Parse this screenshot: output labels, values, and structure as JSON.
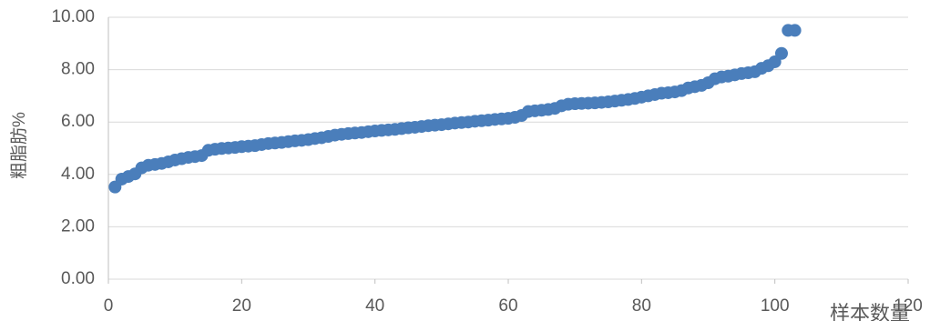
{
  "chart_data": {
    "type": "scatter",
    "y_label": "粗脂肪%",
    "x_label": "样本数量",
    "color": "#4a7ebb",
    "grid": true,
    "x": [
      1,
      2,
      3,
      4,
      5,
      6,
      7,
      8,
      9,
      10,
      11,
      12,
      13,
      14,
      15,
      16,
      17,
      18,
      19,
      20,
      21,
      22,
      23,
      24,
      25,
      26,
      27,
      28,
      29,
      30,
      31,
      32,
      33,
      34,
      35,
      36,
      37,
      38,
      39,
      40,
      41,
      42,
      43,
      44,
      45,
      46,
      47,
      48,
      49,
      50,
      51,
      52,
      53,
      54,
      55,
      56,
      57,
      58,
      59,
      60,
      61,
      62,
      63,
      64,
      65,
      66,
      67,
      68,
      69,
      70,
      71,
      72,
      73,
      74,
      75,
      76,
      77,
      78,
      79,
      80,
      81,
      82,
      83,
      84,
      85,
      86,
      87,
      88,
      89,
      90,
      91,
      92,
      93,
      94,
      95,
      96,
      97,
      98,
      99,
      100,
      101,
      102,
      103
    ],
    "values": [
      3.52,
      3.82,
      3.92,
      4.02,
      4.25,
      4.35,
      4.38,
      4.42,
      4.48,
      4.55,
      4.6,
      4.65,
      4.68,
      4.72,
      4.92,
      4.96,
      4.99,
      5.01,
      5.03,
      5.06,
      5.08,
      5.1,
      5.14,
      5.18,
      5.2,
      5.22,
      5.25,
      5.28,
      5.3,
      5.33,
      5.37,
      5.4,
      5.45,
      5.5,
      5.53,
      5.56,
      5.58,
      5.6,
      5.63,
      5.66,
      5.68,
      5.7,
      5.72,
      5.75,
      5.78,
      5.8,
      5.83,
      5.86,
      5.88,
      5.9,
      5.93,
      5.96,
      5.98,
      6.0,
      6.03,
      6.05,
      6.07,
      6.1,
      6.12,
      6.14,
      6.18,
      6.25,
      6.4,
      6.43,
      6.45,
      6.48,
      6.52,
      6.62,
      6.68,
      6.7,
      6.71,
      6.72,
      6.73,
      6.75,
      6.77,
      6.8,
      6.83,
      6.86,
      6.9,
      6.95,
      7.0,
      7.05,
      7.1,
      7.12,
      7.15,
      7.2,
      7.3,
      7.35,
      7.4,
      7.5,
      7.65,
      7.72,
      7.75,
      7.8,
      7.85,
      7.88,
      7.92,
      8.05,
      8.15,
      8.3,
      8.62,
      9.5,
      9.5
    ],
    "xlim": [
      0,
      120
    ],
    "xticks": [
      0,
      20,
      40,
      60,
      80,
      100,
      120
    ],
    "ylim": [
      0,
      10
    ],
    "yticks": [
      {
        "value": 0,
        "label": "0.00"
      },
      {
        "value": 2,
        "label": "2.00"
      },
      {
        "value": 4,
        "label": "4.00"
      },
      {
        "value": 6,
        "label": "6.00"
      },
      {
        "value": 8,
        "label": "8.00"
      },
      {
        "value": 10,
        "label": "10.00"
      }
    ]
  }
}
